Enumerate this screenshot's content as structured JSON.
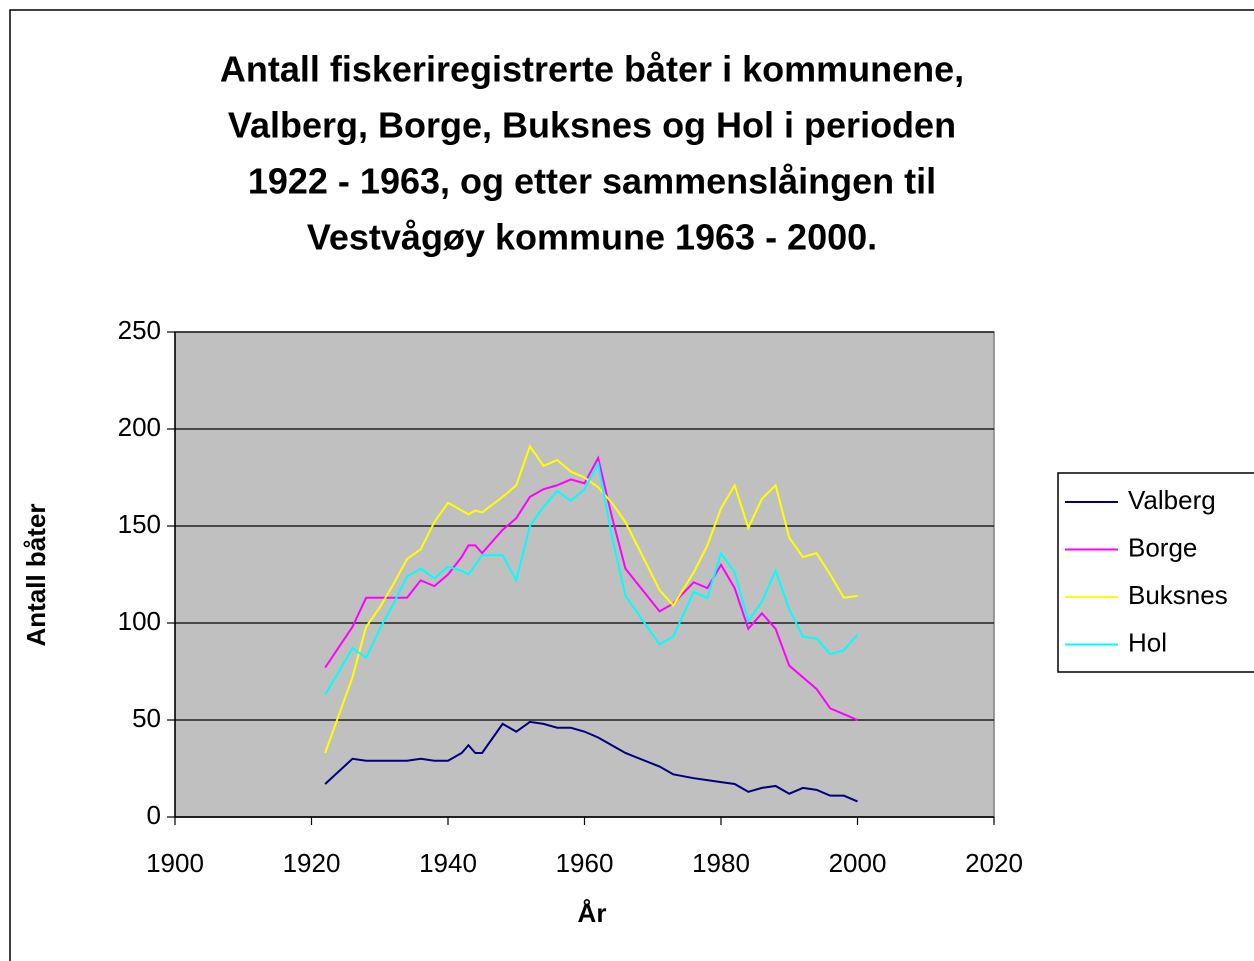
{
  "chart_data": {
    "type": "line",
    "title": [
      "Antall fiskeriregistrerte båter i kommunene,",
      "Valberg, Borge, Buksnes og Hol i perioden",
      "1922 - 1963, og etter sammenslåingen til",
      "Vestvågøy kommune 1963 - 2000."
    ],
    "x_label": "År",
    "y_label": "Antall båter",
    "x": [
      1922,
      1926,
      1928,
      1930,
      1932,
      1934,
      1936,
      1938,
      1940,
      1942,
      1943,
      1944,
      1945,
      1948,
      1950,
      1952,
      1954,
      1956,
      1958,
      1960,
      1962,
      1964,
      1966,
      1971,
      1973,
      1976,
      1978,
      1980,
      1982,
      1984,
      1986,
      1988,
      1990,
      1992,
      1994,
      1996,
      1998,
      2000
    ],
    "series": [
      {
        "name": "Valberg",
        "color": "#000080",
        "values": [
          17,
          30,
          29,
          29,
          29,
          29,
          30,
          29,
          29,
          33,
          37,
          33,
          33,
          48,
          44,
          49,
          48,
          46,
          46,
          44,
          41,
          37,
          33,
          26,
          22,
          20,
          19,
          18,
          17,
          13,
          15,
          16,
          12,
          15,
          14,
          11,
          11,
          8
        ]
      },
      {
        "name": "Borge",
        "color": "#ff00ff",
        "values": [
          77,
          98,
          113,
          113,
          113,
          113,
          122,
          119,
          125,
          134,
          140,
          140,
          136,
          148,
          154,
          165,
          169,
          171,
          174,
          172,
          185,
          155,
          128,
          106,
          110,
          121,
          118,
          130,
          118,
          97,
          105,
          97,
          78,
          72,
          66,
          56,
          53,
          50
        ]
      },
      {
        "name": "Buksnes",
        "color": "#ffff00",
        "values": [
          33,
          72,
          98,
          108,
          120,
          133,
          138,
          152,
          162,
          158,
          156,
          158,
          157,
          165,
          171,
          191,
          181,
          184,
          178,
          175,
          170,
          162,
          152,
          117,
          109,
          126,
          140,
          159,
          171,
          149,
          164,
          171,
          144,
          134,
          136,
          125,
          113,
          114
        ]
      },
      {
        "name": "Hol",
        "color": "#00ffff",
        "values": [
          63,
          87,
          82,
          97,
          110,
          124,
          128,
          123,
          129,
          127,
          125,
          130,
          135,
          135,
          122,
          150,
          160,
          168,
          163,
          169,
          182,
          145,
          114,
          89,
          93,
          116,
          113,
          136,
          126,
          101,
          111,
          127,
          107,
          93,
          92,
          84,
          86,
          94
        ]
      }
    ],
    "xlim": [
      1900,
      2020
    ],
    "xticks": [
      1900,
      1920,
      1940,
      1960,
      1980,
      2000,
      2020
    ],
    "ylim": [
      0,
      250
    ],
    "yticks": [
      0,
      50,
      100,
      150,
      200,
      250
    ],
    "grid": true,
    "legend": "right",
    "plot_background": "#c0c0c0"
  }
}
